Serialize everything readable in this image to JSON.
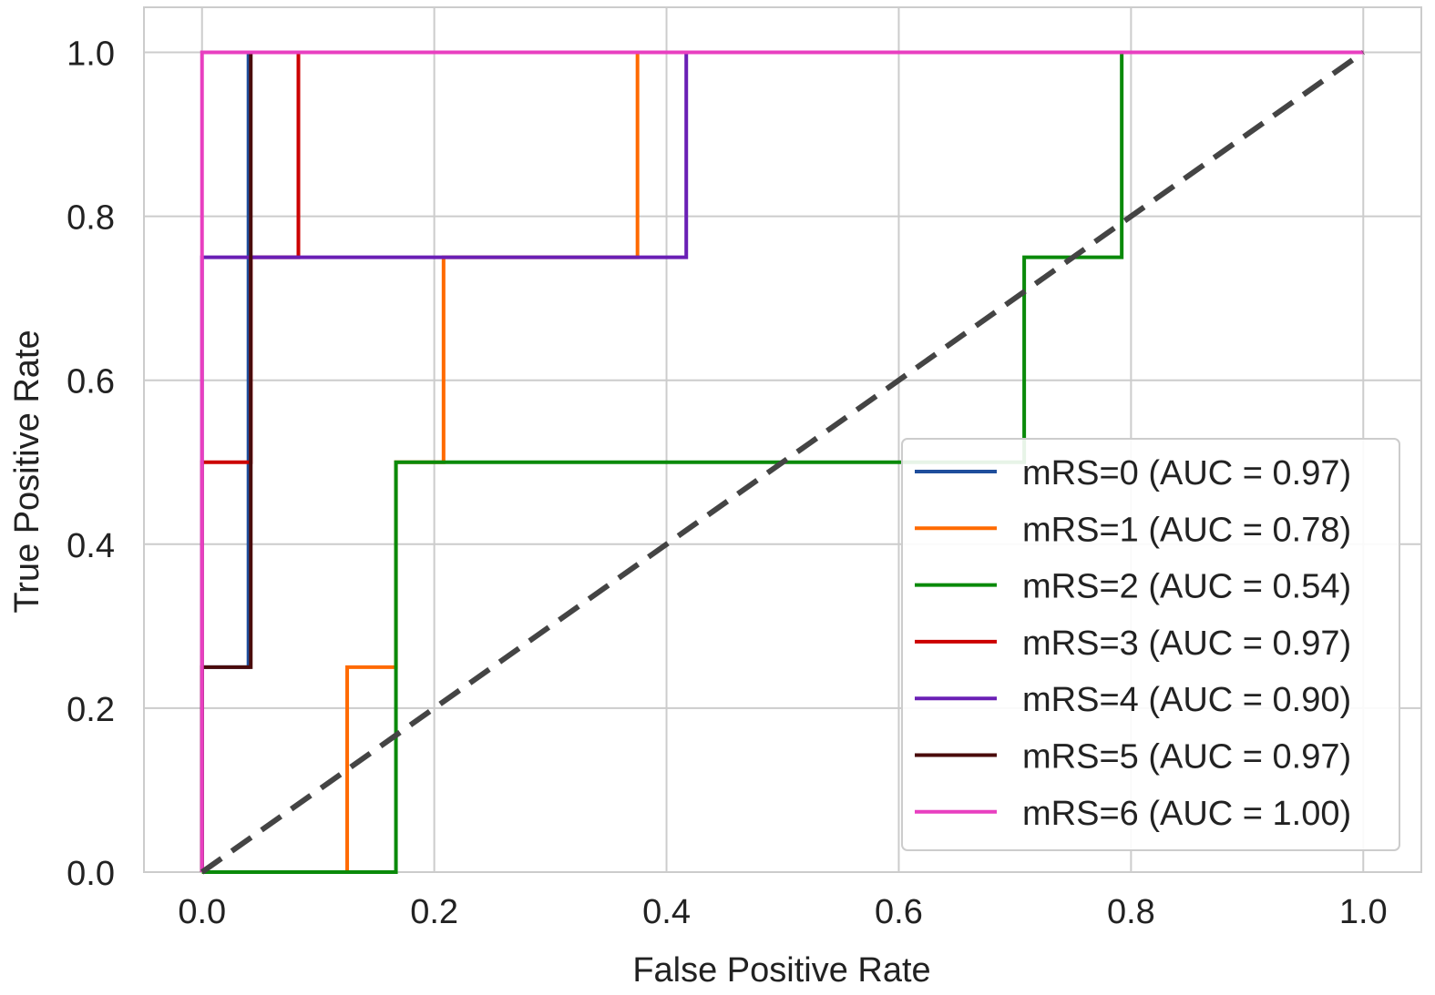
{
  "chart_data": {
    "type": "line",
    "title": "",
    "xlabel": "False Positive Rate",
    "ylabel": "True Positive Rate",
    "xlim": [
      -0.05,
      1.05
    ],
    "ylim": [
      0.0,
      1.055
    ],
    "xticks": [
      0.0,
      0.2,
      0.4,
      0.6,
      0.8,
      1.0
    ],
    "xtick_labels": [
      "0.0",
      "0.2",
      "0.4",
      "0.6",
      "0.8",
      "1.0"
    ],
    "yticks": [
      0.0,
      0.2,
      0.4,
      0.6,
      0.8,
      1.0
    ],
    "ytick_labels": [
      "0.0",
      "0.2",
      "0.4",
      "0.6",
      "0.8",
      "1.0"
    ],
    "grid": true,
    "legend_position": "lower-right",
    "diagonal": {
      "x": [
        0.0,
        1.0
      ],
      "y": [
        0.0,
        1.0
      ],
      "color": "#444444",
      "style": "dashed"
    },
    "series": [
      {
        "name": "mRS=0 (AUC = 0.97)",
        "color": "#1f4e9c",
        "x": [
          0.0,
          0.0,
          0.04,
          0.04,
          1.0
        ],
        "y": [
          0.0,
          0.25,
          0.25,
          1.0,
          1.0
        ]
      },
      {
        "name": "mRS=1 (AUC = 0.78)",
        "color": "#ff6a00",
        "x": [
          0.0,
          0.125,
          0.125,
          0.167,
          0.167,
          0.208,
          0.208,
          0.375,
          0.375,
          1.0
        ],
        "y": [
          0.0,
          0.0,
          0.25,
          0.25,
          0.5,
          0.5,
          0.75,
          0.75,
          1.0,
          1.0
        ]
      },
      {
        "name": "mRS=2 (AUC = 0.54)",
        "color": "#0a8a0a",
        "x": [
          0.0,
          0.167,
          0.167,
          0.708,
          0.708,
          0.792,
          0.792,
          1.0
        ],
        "y": [
          0.0,
          0.0,
          0.5,
          0.5,
          0.75,
          0.75,
          1.0,
          1.0
        ]
      },
      {
        "name": "mRS=3 (AUC = 0.97)",
        "color": "#cc0000",
        "x": [
          0.0,
          0.0,
          0.042,
          0.042,
          0.083,
          0.083,
          1.0
        ],
        "y": [
          0.0,
          0.5,
          0.5,
          0.75,
          0.75,
          1.0,
          1.0
        ]
      },
      {
        "name": "mRS=4 (AUC = 0.90)",
        "color": "#6a1fb5",
        "x": [
          0.0,
          0.0,
          0.417,
          0.417,
          1.0
        ],
        "y": [
          0.0,
          0.75,
          0.75,
          1.0,
          1.0
        ]
      },
      {
        "name": "mRS=5 (AUC = 0.97)",
        "color": "#4a0b0b",
        "x": [
          0.0,
          0.0,
          0.042,
          0.042,
          1.0
        ],
        "y": [
          0.0,
          0.25,
          0.25,
          1.0,
          1.0
        ]
      },
      {
        "name": "mRS=6 (AUC = 1.00)",
        "color": "#e83fc0",
        "x": [
          0.0,
          0.0,
          1.0
        ],
        "y": [
          0.0,
          1.0,
          1.0
        ]
      }
    ]
  }
}
